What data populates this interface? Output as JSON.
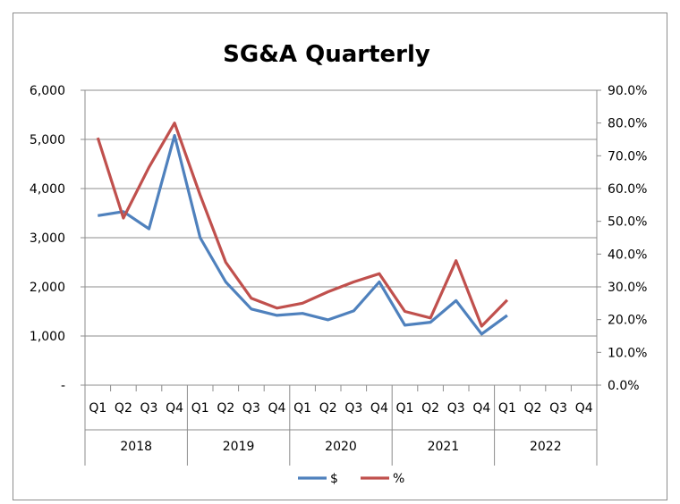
{
  "chart_data": {
    "type": "line",
    "title": "SG&A Quarterly",
    "quarters": [
      "Q1",
      "Q2",
      "Q3",
      "Q4",
      "Q1",
      "Q2",
      "Q3",
      "Q4",
      "Q1",
      "Q2",
      "Q3",
      "Q4",
      "Q1",
      "Q2",
      "Q3",
      "Q4",
      "Q1",
      "Q2",
      "Q3",
      "Q4"
    ],
    "years": [
      "2018",
      "2019",
      "2020",
      "2021",
      "2022"
    ],
    "y_left": {
      "min": 0,
      "max": 6000,
      "ticks": [
        "-",
        "1,000",
        "2,000",
        "3,000",
        "4,000",
        "5,000",
        "6,000"
      ]
    },
    "y_right": {
      "min": 0,
      "max": 0.9,
      "ticks": [
        "0.0%",
        "10.0%",
        "20.0%",
        "30.0%",
        "40.0%",
        "50.0%",
        "60.0%",
        "70.0%",
        "80.0%",
        "90.0%"
      ]
    },
    "grid": true,
    "legend_position": "bottom",
    "series": [
      {
        "name": "$",
        "axis": "left",
        "color": "#4f81bd",
        "values": [
          3450,
          3530,
          3180,
          5080,
          3000,
          2100,
          1550,
          1420,
          1460,
          1330,
          1510,
          2100,
          1220,
          1280,
          1720,
          1040,
          1420,
          null,
          null,
          null
        ]
      },
      {
        "name": "%",
        "axis": "right",
        "color": "#c0504d",
        "values": [
          0.755,
          0.51,
          0.665,
          0.8,
          0.58,
          0.375,
          0.265,
          0.235,
          0.25,
          0.285,
          0.315,
          0.34,
          0.225,
          0.205,
          0.38,
          0.18,
          0.26,
          null,
          null,
          null
        ]
      }
    ]
  }
}
